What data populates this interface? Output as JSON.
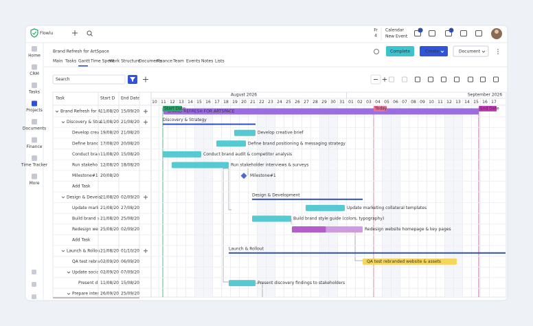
{
  "header": {
    "logo": "Flowlu",
    "calendar_weekday": "Fr",
    "calendar_day": "4",
    "calendar_title": "Calendar",
    "calendar_subtitle": "New Event",
    "badges": [
      "10",
      "9"
    ]
  },
  "sidebar": [
    "Home",
    "CRM",
    "Tasks",
    "Projects",
    "Documents",
    "Finance",
    "Time Tracker",
    "More"
  ],
  "project": {
    "title": "Brand Refresh for ArtSpace",
    "tabs": [
      "Main",
      "Tasks",
      "Gantt",
      "Time Spent",
      "Work Structure",
      "Documents",
      "Finance",
      "Team",
      "Events",
      "Notes",
      "Lists"
    ],
    "buttons": {
      "complete": "Complete",
      "create": "Create",
      "document": "Document"
    }
  },
  "toolbar": {
    "search": "Search"
  },
  "table": {
    "columns": [
      "Task",
      "Start D",
      "End Date"
    ],
    "rows": [
      {
        "task": "Brand Refresh for A",
        "start": "11/08/20",
        "end": "15/09/20"
      },
      {
        "task": "Discovery & Stra",
        "start": "11/08/20",
        "end": "21/08/20"
      },
      {
        "task": "Develop crea",
        "start": "19/08/20",
        "end": "21/08/20"
      },
      {
        "task": "Define brand",
        "start": "17/08/20",
        "end": "20/08/20"
      },
      {
        "task": "Conduct bran",
        "start": "11/08/20",
        "end": "15/08/20"
      },
      {
        "task": "Run stakehol",
        "start": "12/08/20",
        "end": "18/08/20"
      },
      {
        "task": "Milestone#1",
        "start": "20/08/20"
      },
      {
        "task": "Add Task"
      },
      {
        "task": "Design & Develo",
        "start": "21/08/20",
        "end": "02/09/20"
      },
      {
        "task": "Update mark",
        "start": "21/08/20",
        "end": "27/08/20"
      },
      {
        "task": "Build brand s",
        "start": "21/08/20",
        "end": "25/08/20"
      },
      {
        "task": "Redesign we",
        "start": "25/08/20",
        "end": "02/09/20"
      },
      {
        "task": "Add Task"
      },
      {
        "task": "Launch & Rollou",
        "start": "21/08/20",
        "end": "01/10/20"
      },
      {
        "task": "QA test rebra",
        "start": "02/09/20",
        "end": "06/09/20"
      },
      {
        "task": "Update socia",
        "start": "02/09/20",
        "end": "07/09/20"
      },
      {
        "task": "Present d",
        "start": "11/08/20",
        "end": "15/08/20"
      },
      {
        "task": "Prepare inter",
        "start": "26/09/20",
        "end": "25/09/20"
      }
    ]
  },
  "timeline": {
    "months": [
      "August 2026",
      "September 2026"
    ],
    "days": [
      "10",
      "11",
      "12",
      "13",
      "14",
      "15",
      "16",
      "17",
      "18",
      "19",
      "20",
      "21",
      "22",
      "23",
      "24",
      "25",
      "26",
      "27",
      "28",
      "29",
      "30",
      "31",
      "01",
      "02",
      "03",
      "04",
      "05",
      "06",
      "07",
      "08",
      "09",
      "10",
      "11",
      "12",
      "13",
      "14",
      "15",
      "16",
      "17"
    ],
    "markers": {
      "start": "Start Date",
      "today": "Today",
      "end": "End Date"
    },
    "bars": [
      "BRAND REFRESH FOR ARTSPACE",
      "Discovery & Strategy",
      "Develop creative brief",
      "Define brand positioning & messaging strategy",
      "Conduct brand audit & competitor analysis",
      "Run stakeholder interviews & surveys",
      "Milestone#1",
      "Design & Development",
      "Update marketing collateral templates",
      "Build brand style guide (colors, typography)",
      "Redesign website homepage & key pages",
      "Launch & Rollout",
      "QA test rebranded website & assets",
      "Present discovery findings to stakeholders"
    ]
  }
}
